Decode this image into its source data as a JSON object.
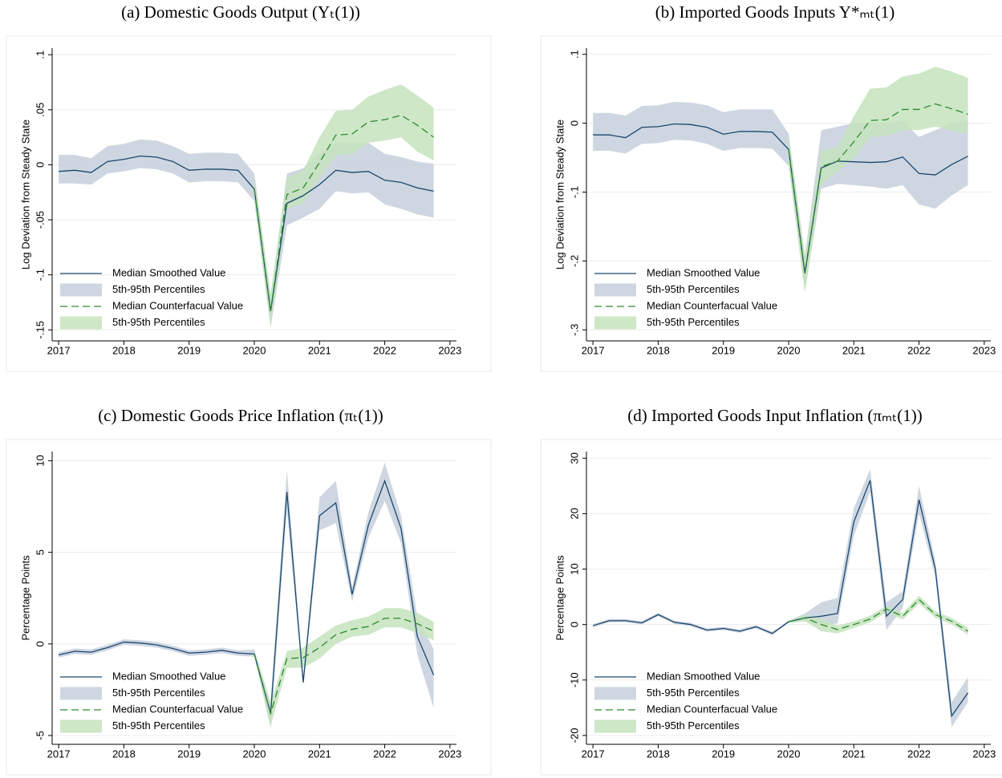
{
  "chart_data": [
    {
      "type": "line",
      "title": "(a) Domestic Goods Output (Yₜ(1))",
      "y_label": "Log Deviation from Steady State",
      "x": [
        2017,
        2017.25,
        2017.5,
        2017.75,
        2018,
        2018.25,
        2018.5,
        2018.75,
        2019,
        2019.25,
        2019.5,
        2019.75,
        2020,
        2020.25,
        2020.5,
        2020.75,
        2021,
        2021.25,
        2021.5,
        2021.75,
        2022,
        2022.25,
        2022.5,
        2022.75
      ],
      "xlim": [
        2016.9,
        2023.1
      ],
      "xticks": [
        2017,
        2018,
        2019,
        2020,
        2021,
        2022,
        2023
      ],
      "ylim": [
        -0.16,
        0.106
      ],
      "yticks": [
        {
          "value": 0.1,
          "label": ".1"
        },
        {
          "value": 0.05,
          "label": ".05"
        },
        0,
        {
          "value": -0.05,
          "label": "-.05"
        },
        {
          "value": -0.1,
          "label": "-.1"
        },
        {
          "value": -0.15,
          "label": "-.15"
        }
      ],
      "grid": true,
      "series": [
        {
          "name": "Median Smoothed Value",
          "kind": "line",
          "color": "#1a476f",
          "dashed": false,
          "values": [
            -0.006,
            -0.005,
            -0.007,
            0.003,
            0.005,
            0.008,
            0.007,
            0.003,
            -0.005,
            -0.004,
            -0.004,
            -0.005,
            -0.022,
            -0.133,
            -0.035,
            -0.028,
            -0.018,
            -0.005,
            -0.007,
            -0.006,
            -0.014,
            -0.016,
            -0.021,
            -0.024
          ]
        },
        {
          "name": "5th-95th Percentiles",
          "kind": "band",
          "color": "#c6d0dc",
          "low": [
            -0.017,
            -0.017,
            -0.018,
            -0.008,
            -0.006,
            -0.003,
            -0.004,
            -0.008,
            -0.016,
            -0.015,
            -0.015,
            -0.016,
            -0.033,
            -0.148,
            -0.055,
            -0.048,
            -0.04,
            -0.024,
            -0.026,
            -0.025,
            -0.036,
            -0.04,
            -0.045,
            -0.048
          ],
          "high": [
            0.009,
            0.009,
            0.006,
            0.017,
            0.019,
            0.023,
            0.022,
            0.017,
            0.01,
            0.011,
            0.011,
            0.01,
            -0.008,
            -0.118,
            -0.008,
            -0.003,
            0.01,
            0.02,
            0.02,
            0.02,
            0.01,
            0.007,
            0.003,
            0.001
          ]
        },
        {
          "name": "Median Counterfacual Value",
          "kind": "line",
          "color": "#2e8b2e",
          "dashed": true,
          "values": [
            null,
            null,
            null,
            null,
            null,
            null,
            null,
            null,
            null,
            null,
            null,
            null,
            -0.022,
            -0.133,
            -0.027,
            -0.021,
            0.002,
            0.027,
            0.028,
            0.039,
            0.041,
            0.045,
            0.036,
            0.025
          ]
        },
        {
          "name": "5th-95th Percentiles",
          "kind": "band",
          "color": "#c4e3bd",
          "low": [
            null,
            null,
            null,
            null,
            null,
            null,
            null,
            null,
            null,
            null,
            null,
            null,
            -0.033,
            -0.148,
            -0.04,
            -0.035,
            -0.012,
            0.008,
            0.01,
            0.02,
            0.022,
            0.025,
            0.012,
            0.004
          ],
          "high": [
            null,
            null,
            null,
            null,
            null,
            null,
            null,
            null,
            null,
            null,
            null,
            null,
            -0.008,
            -0.118,
            -0.012,
            -0.005,
            0.025,
            0.049,
            0.05,
            0.062,
            0.068,
            0.073,
            0.063,
            0.052
          ]
        }
      ]
    },
    {
      "type": "line",
      "title": "(b) Imported Goods Inputs Y*ₘₜ(1)",
      "y_label": "Log Deviation from Steady State",
      "x": [
        2017,
        2017.25,
        2017.5,
        2017.75,
        2018,
        2018.25,
        2018.5,
        2018.75,
        2019,
        2019.25,
        2019.5,
        2019.75,
        2020,
        2020.25,
        2020.5,
        2020.75,
        2021,
        2021.25,
        2021.5,
        2021.75,
        2022,
        2022.25,
        2022.5,
        2022.75
      ],
      "xlim": [
        2016.9,
        2023.1
      ],
      "xticks": [
        2017,
        2018,
        2019,
        2020,
        2021,
        2022,
        2023
      ],
      "ylim": [
        -0.316,
        0.109
      ],
      "yticks": [
        {
          "value": 0.1,
          "label": ".1"
        },
        0,
        {
          "value": -0.1,
          "label": "-.1"
        },
        {
          "value": -0.2,
          "label": "-.2"
        },
        {
          "value": -0.3,
          "label": "-.3"
        }
      ],
      "grid": true,
      "series": [
        {
          "name": "Median Smoothed Value",
          "kind": "line",
          "color": "#1a476f",
          "dashed": false,
          "values": [
            -0.017,
            -0.017,
            -0.021,
            -0.006,
            -0.005,
            -0.001,
            -0.002,
            -0.006,
            -0.016,
            -0.012,
            -0.012,
            -0.013,
            -0.038,
            -0.218,
            -0.065,
            -0.055,
            -0.056,
            -0.057,
            -0.056,
            -0.049,
            -0.073,
            -0.075,
            -0.06,
            -0.048
          ]
        },
        {
          "name": "5th-95th Percentiles",
          "kind": "band",
          "color": "#c6d0dc",
          "low": [
            -0.04,
            -0.04,
            -0.044,
            -0.03,
            -0.029,
            -0.024,
            -0.025,
            -0.03,
            -0.04,
            -0.036,
            -0.036,
            -0.037,
            -0.062,
            -0.245,
            -0.095,
            -0.088,
            -0.09,
            -0.092,
            -0.095,
            -0.09,
            -0.118,
            -0.124,
            -0.105,
            -0.09
          ],
          "high": [
            0.015,
            0.015,
            0.011,
            0.025,
            0.026,
            0.031,
            0.03,
            0.026,
            0.016,
            0.02,
            0.02,
            0.02,
            -0.015,
            -0.192,
            -0.01,
            -0.005,
            0,
            0,
            0,
            0.003,
            -0.02,
            -0.01,
            0,
            0.005
          ]
        },
        {
          "name": "Median Counterfacual Value",
          "kind": "line",
          "color": "#2e8b2e",
          "dashed": true,
          "values": [
            null,
            null,
            null,
            null,
            null,
            null,
            null,
            null,
            null,
            null,
            null,
            null,
            -0.038,
            -0.218,
            -0.063,
            -0.055,
            -0.027,
            0.004,
            0.005,
            0.02,
            0.02,
            0.028,
            0.021,
            0.013
          ]
        },
        {
          "name": "5th-95th Percentiles",
          "kind": "band",
          "color": "#c4e3bd",
          "low": [
            null,
            null,
            null,
            null,
            null,
            null,
            null,
            null,
            null,
            null,
            null,
            null,
            -0.062,
            -0.245,
            -0.09,
            -0.07,
            -0.05,
            -0.02,
            -0.018,
            -0.01,
            -0.01,
            -0.005,
            -0.01,
            -0.015
          ],
          "high": [
            null,
            null,
            null,
            null,
            null,
            null,
            null,
            null,
            null,
            null,
            null,
            null,
            -0.015,
            -0.192,
            -0.04,
            -0.035,
            0.01,
            0.05,
            0.052,
            0.068,
            0.072,
            0.082,
            0.075,
            0.066
          ]
        }
      ]
    },
    {
      "type": "line",
      "title": "(c) Domestic Goods Price Inflation (πₜ(1))",
      "y_label": "Percentage Points",
      "x": [
        2017,
        2017.25,
        2017.5,
        2017.75,
        2018,
        2018.25,
        2018.5,
        2018.75,
        2019,
        2019.25,
        2019.5,
        2019.75,
        2020,
        2020.25,
        2020.5,
        2020.75,
        2021,
        2021.25,
        2021.5,
        2021.75,
        2022,
        2022.25,
        2022.5,
        2022.75
      ],
      "xlim": [
        2016.9,
        2023.1
      ],
      "xticks": [
        2017,
        2018,
        2019,
        2020,
        2021,
        2022,
        2023
      ],
      "ylim": [
        -5.48,
        10.5
      ],
      "yticks": [
        10,
        5,
        0,
        -5
      ],
      "grid": true,
      "series": [
        {
          "name": "Median Smoothed Value",
          "kind": "line",
          "color": "#1a476f",
          "dashed": false,
          "values": [
            -0.6,
            -0.4,
            -0.45,
            -0.2,
            0.1,
            0.05,
            -0.05,
            -0.25,
            -0.5,
            -0.45,
            -0.35,
            -0.5,
            -0.55,
            -3.8,
            8.3,
            -2.1,
            7.0,
            7.7,
            2.7,
            6.5,
            8.9,
            6.3,
            0.4,
            -1.7
          ]
        },
        {
          "name": "5th-95th Percentiles",
          "kind": "band",
          "color": "#c6d0dc",
          "low": [
            -0.75,
            -0.55,
            -0.6,
            -0.35,
            -0.05,
            -0.1,
            -0.2,
            -0.4,
            -0.65,
            -0.6,
            -0.5,
            -0.65,
            -0.7,
            -4.6,
            7.3,
            -2.3,
            6.2,
            6.6,
            2.3,
            5.8,
            7.8,
            5.5,
            -0.6,
            -3.5
          ],
          "high": [
            -0.45,
            -0.25,
            -0.3,
            -0.05,
            0.25,
            0.2,
            0.1,
            -0.1,
            -0.35,
            -0.3,
            -0.2,
            -0.35,
            -0.3,
            -3.2,
            9.5,
            -1.8,
            8.0,
            8.9,
            3.1,
            7.2,
            9.9,
            7.0,
            1.5,
            -0.3
          ]
        },
        {
          "name": "Median Counterfacual Value",
          "kind": "line",
          "color": "#2e8b2e",
          "dashed": true,
          "values": [
            null,
            null,
            null,
            null,
            null,
            null,
            null,
            null,
            null,
            null,
            null,
            null,
            -0.55,
            -3.8,
            -0.8,
            -0.75,
            -0.2,
            0.5,
            0.8,
            0.95,
            1.4,
            1.4,
            1.1,
            0.7
          ]
        },
        {
          "name": "5th-95th Percentiles",
          "kind": "band",
          "color": "#c4e3bd",
          "low": [
            null,
            null,
            null,
            null,
            null,
            null,
            null,
            null,
            null,
            null,
            null,
            null,
            -0.7,
            -4.5,
            -1.3,
            -1.3,
            -0.8,
            0.0,
            0.4,
            0.5,
            0.9,
            0.9,
            0.6,
            0.2
          ],
          "high": [
            null,
            null,
            null,
            null,
            null,
            null,
            null,
            null,
            null,
            null,
            null,
            null,
            -0.4,
            -3.2,
            -0.4,
            -0.2,
            0.4,
            1.0,
            1.3,
            1.5,
            1.95,
            1.95,
            1.7,
            1.2
          ]
        }
      ]
    },
    {
      "type": "line",
      "title": "(d) Imported Goods Input Inflation (πₘₜ(1))",
      "y_label": "Percentage Points",
      "x": [
        2017,
        2017.25,
        2017.5,
        2017.75,
        2018,
        2018.25,
        2018.5,
        2018.75,
        2019,
        2019.25,
        2019.5,
        2019.75,
        2020,
        2020.25,
        2020.5,
        2020.75,
        2021,
        2021.25,
        2021.5,
        2021.75,
        2022,
        2022.25,
        2022.5,
        2022.75
      ],
      "xlim": [
        2016.9,
        2023.1
      ],
      "xticks": [
        2017,
        2018,
        2019,
        2020,
        2021,
        2022,
        2023
      ],
      "ylim": [
        -21.6,
        31.2
      ],
      "yticks": [
        30,
        20,
        10,
        0,
        -10,
        -20
      ],
      "grid": true,
      "series": [
        {
          "name": "Median Smoothed Value",
          "kind": "line",
          "color": "#1a476f",
          "dashed": false,
          "values": [
            -0.2,
            0.7,
            0.7,
            0.3,
            1.8,
            0.4,
            0,
            -1,
            -0.7,
            -1.2,
            -0.4,
            -1.6,
            0.5,
            1.2,
            1.5,
            2,
            18.5,
            26,
            1.5,
            4.5,
            22.5,
            10,
            -16.5,
            -12.3
          ]
        },
        {
          "name": "5th-95th Percentiles",
          "kind": "band",
          "color": "#c6d0dc",
          "low": [
            -0.5,
            0.4,
            0.4,
            0,
            1.5,
            0.1,
            -0.3,
            -1.3,
            -1,
            -1.5,
            -0.7,
            -1.9,
            0.3,
            0.6,
            -0.2,
            0.2,
            16,
            24,
            -1,
            3,
            20,
            8.5,
            -18.5,
            -14
          ],
          "high": [
            0.1,
            1,
            1,
            0.6,
            2.1,
            0.7,
            0.3,
            -0.7,
            -0.4,
            -0.9,
            -0.1,
            -1.3,
            0.7,
            2,
            4,
            4.8,
            21,
            28,
            4,
            6,
            25,
            11.5,
            -14,
            -9.5
          ]
        },
        {
          "name": "Median Counterfacual Value",
          "kind": "line",
          "color": "#2e8b2e",
          "dashed": true,
          "values": [
            null,
            null,
            null,
            null,
            null,
            null,
            null,
            null,
            null,
            null,
            null,
            null,
            0.5,
            1.2,
            0,
            -0.9,
            0,
            1,
            2.8,
            1.5,
            4.5,
            1.8,
            0.6,
            -1.2
          ]
        },
        {
          "name": "5th-95th Percentiles",
          "kind": "band",
          "color": "#c4e3bd",
          "low": [
            null,
            null,
            null,
            null,
            null,
            null,
            null,
            null,
            null,
            null,
            null,
            null,
            0.3,
            0.6,
            -1.2,
            -1.6,
            -0.6,
            0.4,
            2.2,
            0.9,
            3.8,
            1.2,
            0,
            -1.8
          ],
          "high": [
            null,
            null,
            null,
            null,
            null,
            null,
            null,
            null,
            null,
            null,
            null,
            null,
            0.7,
            1.8,
            1,
            -0.2,
            0.6,
            1.6,
            3.4,
            2.1,
            5.2,
            2.4,
            1.2,
            -0.6
          ]
        }
      ]
    }
  ]
}
